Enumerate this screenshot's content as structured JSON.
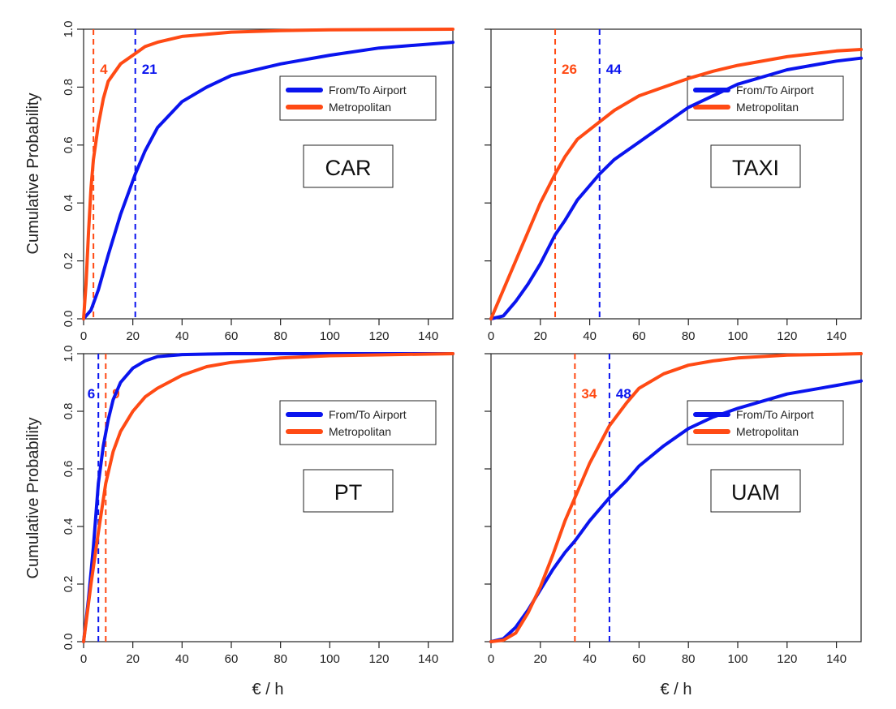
{
  "figure": {
    "y_label": "Cumulative Probability",
    "x_label": "€ / h",
    "colors": {
      "airport": "#0a14ee",
      "metro": "#ff4a14"
    }
  },
  "chart_data": [
    {
      "type": "line",
      "title": "CAR",
      "xlabel": "€ / h",
      "ylabel": "Cumulative Probability",
      "xlim": [
        0,
        150
      ],
      "ylim": [
        0,
        1
      ],
      "x_ticks": [
        "0",
        "20",
        "40",
        "60",
        "80",
        "100",
        "120",
        "140"
      ],
      "y_ticks": [
        "0.0",
        "0.2",
        "0.4",
        "0.6",
        "0.8",
        "1.0"
      ],
      "legend": {
        "position": "right",
        "entries": [
          "From/To Airport",
          "Metropolitan"
        ]
      },
      "series": [
        {
          "name": "From/To Airport",
          "color": "#0a14ee",
          "points": [
            [
              0,
              0
            ],
            [
              3,
              0.03
            ],
            [
              6,
              0.1
            ],
            [
              10,
              0.22
            ],
            [
              15,
              0.36
            ],
            [
              21,
              0.5
            ],
            [
              25,
              0.58
            ],
            [
              30,
              0.66
            ],
            [
              40,
              0.75
            ],
            [
              50,
              0.8
            ],
            [
              60,
              0.84
            ],
            [
              80,
              0.88
            ],
            [
              100,
              0.91
            ],
            [
              120,
              0.935
            ],
            [
              150,
              0.955
            ]
          ]
        },
        {
          "name": "Metropolitan",
          "color": "#ff4a14",
          "points": [
            [
              0,
              0
            ],
            [
              1,
              0.12
            ],
            [
              2,
              0.3
            ],
            [
              3,
              0.45
            ],
            [
              4,
              0.55
            ],
            [
              6,
              0.67
            ],
            [
              8,
              0.76
            ],
            [
              10,
              0.82
            ],
            [
              15,
              0.88
            ],
            [
              20,
              0.91
            ],
            [
              25,
              0.94
            ],
            [
              30,
              0.955
            ],
            [
              40,
              0.975
            ],
            [
              60,
              0.99
            ],
            [
              80,
              0.995
            ],
            [
              100,
              0.998
            ],
            [
              150,
              1
            ]
          ]
        }
      ],
      "reference_lines": [
        {
          "x": 4,
          "label": "4",
          "color": "#ff4a14"
        },
        {
          "x": 21,
          "label": "21",
          "color": "#0a14ee"
        }
      ]
    },
    {
      "type": "line",
      "title": "TAXI",
      "xlabel": "€ / h",
      "ylabel": "",
      "xlim": [
        0,
        150
      ],
      "ylim": [
        0,
        1
      ],
      "x_ticks": [
        "0",
        "20",
        "40",
        "60",
        "80",
        "100",
        "120",
        "140"
      ],
      "y_ticks": [],
      "legend": {
        "position": "right",
        "entries": [
          "From/To Airport",
          "Metropolitan"
        ]
      },
      "series": [
        {
          "name": "From/To Airport",
          "color": "#0a14ee",
          "points": [
            [
              0,
              0
            ],
            [
              5,
              0.01
            ],
            [
              10,
              0.06
            ],
            [
              15,
              0.12
            ],
            [
              20,
              0.19
            ],
            [
              26,
              0.29
            ],
            [
              30,
              0.34
            ],
            [
              35,
              0.41
            ],
            [
              44,
              0.5
            ],
            [
              50,
              0.55
            ],
            [
              60,
              0.61
            ],
            [
              70,
              0.67
            ],
            [
              80,
              0.73
            ],
            [
              90,
              0.77
            ],
            [
              100,
              0.81
            ],
            [
              120,
              0.86
            ],
            [
              140,
              0.89
            ],
            [
              150,
              0.9
            ]
          ]
        },
        {
          "name": "Metropolitan",
          "color": "#ff4a14",
          "points": [
            [
              0,
              0
            ],
            [
              5,
              0.1
            ],
            [
              10,
              0.2
            ],
            [
              15,
              0.3
            ],
            [
              20,
              0.4
            ],
            [
              26,
              0.5
            ],
            [
              30,
              0.56
            ],
            [
              35,
              0.62
            ],
            [
              44,
              0.68
            ],
            [
              50,
              0.72
            ],
            [
              60,
              0.77
            ],
            [
              70,
              0.8
            ],
            [
              80,
              0.83
            ],
            [
              90,
              0.855
            ],
            [
              100,
              0.875
            ],
            [
              120,
              0.905
            ],
            [
              140,
              0.925
            ],
            [
              150,
              0.93
            ]
          ]
        }
      ],
      "reference_lines": [
        {
          "x": 26,
          "label": "26",
          "color": "#ff4a14"
        },
        {
          "x": 44,
          "label": "44",
          "color": "#0a14ee"
        }
      ]
    },
    {
      "type": "line",
      "title": "PT",
      "xlabel": "€ / h",
      "ylabel": "Cumulative Probability",
      "xlim": [
        0,
        150
      ],
      "ylim": [
        0,
        1
      ],
      "x_ticks": [
        "0",
        "20",
        "40",
        "60",
        "80",
        "100",
        "120",
        "140"
      ],
      "y_ticks": [
        "0.0",
        "0.2",
        "0.4",
        "0.6",
        "0.8",
        "1.0"
      ],
      "legend": {
        "position": "right",
        "entries": [
          "From/To Airport",
          "Metropolitan"
        ]
      },
      "series": [
        {
          "name": "From/To Airport",
          "color": "#0a14ee",
          "points": [
            [
              0,
              0
            ],
            [
              2,
              0.15
            ],
            [
              4,
              0.33
            ],
            [
              6,
              0.55
            ],
            [
              8,
              0.68
            ],
            [
              10,
              0.77
            ],
            [
              12,
              0.84
            ],
            [
              15,
              0.9
            ],
            [
              20,
              0.95
            ],
            [
              25,
              0.975
            ],
            [
              30,
              0.99
            ],
            [
              40,
              0.997
            ],
            [
              60,
              1
            ],
            [
              150,
              1
            ]
          ]
        },
        {
          "name": "Metropolitan",
          "color": "#ff4a14",
          "points": [
            [
              0,
              0
            ],
            [
              3,
              0.2
            ],
            [
              6,
              0.38
            ],
            [
              9,
              0.55
            ],
            [
              12,
              0.66
            ],
            [
              15,
              0.73
            ],
            [
              20,
              0.8
            ],
            [
              25,
              0.85
            ],
            [
              30,
              0.88
            ],
            [
              40,
              0.925
            ],
            [
              50,
              0.955
            ],
            [
              60,
              0.97
            ],
            [
              80,
              0.985
            ],
            [
              100,
              0.993
            ],
            [
              150,
              1
            ]
          ]
        }
      ],
      "reference_lines": [
        {
          "x": 6,
          "label": "6",
          "color": "#0a14ee"
        },
        {
          "x": 9,
          "label": "9",
          "color": "#ff4a14"
        }
      ]
    },
    {
      "type": "line",
      "title": "UAM",
      "xlabel": "€ / h",
      "ylabel": "",
      "xlim": [
        0,
        150
      ],
      "ylim": [
        0,
        1
      ],
      "x_ticks": [
        "0",
        "20",
        "40",
        "60",
        "80",
        "100",
        "120",
        "140"
      ],
      "y_ticks": [],
      "legend": {
        "position": "right",
        "entries": [
          "From/To Airport",
          "Metropolitan"
        ]
      },
      "series": [
        {
          "name": "From/To Airport",
          "color": "#0a14ee",
          "points": [
            [
              0,
              0
            ],
            [
              5,
              0.01
            ],
            [
              10,
              0.05
            ],
            [
              15,
              0.11
            ],
            [
              20,
              0.18
            ],
            [
              25,
              0.25
            ],
            [
              30,
              0.31
            ],
            [
              34,
              0.35
            ],
            [
              40,
              0.42
            ],
            [
              48,
              0.5
            ],
            [
              55,
              0.56
            ],
            [
              60,
              0.61
            ],
            [
              70,
              0.68
            ],
            [
              80,
              0.74
            ],
            [
              90,
              0.78
            ],
            [
              100,
              0.81
            ],
            [
              120,
              0.86
            ],
            [
              140,
              0.89
            ],
            [
              150,
              0.905
            ]
          ]
        },
        {
          "name": "Metropolitan",
          "color": "#ff4a14",
          "points": [
            [
              0,
              0
            ],
            [
              5,
              0.005
            ],
            [
              10,
              0.03
            ],
            [
              15,
              0.1
            ],
            [
              20,
              0.19
            ],
            [
              25,
              0.3
            ],
            [
              30,
              0.42
            ],
            [
              34,
              0.5
            ],
            [
              40,
              0.62
            ],
            [
              48,
              0.75
            ],
            [
              55,
              0.83
            ],
            [
              60,
              0.88
            ],
            [
              70,
              0.93
            ],
            [
              80,
              0.96
            ],
            [
              90,
              0.975
            ],
            [
              100,
              0.985
            ],
            [
              120,
              0.995
            ],
            [
              140,
              0.998
            ],
            [
              150,
              1
            ]
          ]
        }
      ],
      "reference_lines": [
        {
          "x": 34,
          "label": "34",
          "color": "#ff4a14"
        },
        {
          "x": 48,
          "label": "48",
          "color": "#0a14ee"
        }
      ]
    }
  ]
}
